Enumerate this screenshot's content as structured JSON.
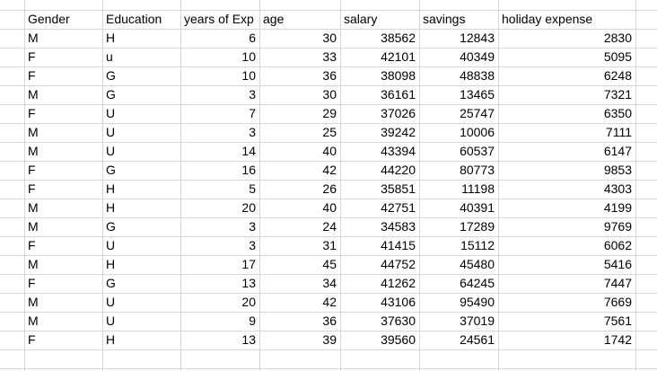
{
  "grid": {
    "column_headers": [
      "Gender",
      "Education",
      "years of Exp",
      "age",
      "salary",
      "savings",
      "holiday expense"
    ],
    "rows": [
      [
        "M",
        "H",
        6,
        30,
        38562,
        12843,
        2830
      ],
      [
        "F",
        "u",
        10,
        33,
        42101,
        40349,
        5095
      ],
      [
        "F",
        "G",
        10,
        36,
        38098,
        48838,
        6248
      ],
      [
        "M",
        "G",
        3,
        30,
        36161,
        13465,
        7321
      ],
      [
        "F",
        "U",
        7,
        29,
        37026,
        25747,
        6350
      ],
      [
        "M",
        "U",
        3,
        25,
        39242,
        10006,
        7111
      ],
      [
        "M",
        "U",
        14,
        40,
        43394,
        60537,
        6147
      ],
      [
        "F",
        "G",
        16,
        42,
        44220,
        80773,
        9853
      ],
      [
        "F",
        "H",
        5,
        26,
        35851,
        11198,
        4303
      ],
      [
        "M",
        "H",
        20,
        40,
        42751,
        40391,
        4199
      ],
      [
        "M",
        "G",
        3,
        24,
        34583,
        17289,
        9769
      ],
      [
        "F",
        "U",
        3,
        31,
        41415,
        15112,
        6062
      ],
      [
        "M",
        "H",
        17,
        45,
        44752,
        45480,
        5416
      ],
      [
        "F",
        "G",
        13,
        34,
        41262,
        64245,
        7447
      ],
      [
        "M",
        "U",
        20,
        42,
        43106,
        95490,
        7669
      ],
      [
        "M",
        "U",
        9,
        36,
        37630,
        37019,
        7561
      ],
      [
        "F",
        "H",
        13,
        39,
        39560,
        24561,
        1742
      ]
    ],
    "colors": {
      "gridline": "#d6d6d6",
      "background": "#ffffff",
      "text": "#000000"
    }
  }
}
